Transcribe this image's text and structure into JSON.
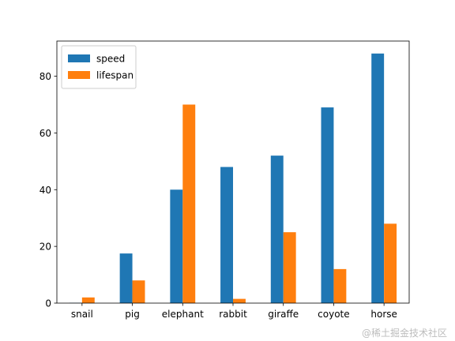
{
  "chart_data": {
    "type": "bar",
    "title": "",
    "xlabel": "",
    "ylabel": "",
    "categories": [
      "snail",
      "pig",
      "elephant",
      "rabbit",
      "giraffe",
      "coyote",
      "horse"
    ],
    "series": [
      {
        "name": "speed",
        "color": "#1f77b4",
        "values": [
          0.1,
          17.5,
          40,
          48,
          52,
          69,
          88
        ]
      },
      {
        "name": "lifespan",
        "color": "#ff7f0e",
        "values": [
          2,
          8,
          70,
          1.5,
          25,
          12,
          28
        ]
      }
    ],
    "ylim": [
      0,
      92.4
    ],
    "yticks": [
      0,
      20,
      40,
      60,
      80
    ],
    "grid": false,
    "legend_position": "top-left"
  },
  "watermark": "@稀土掘金技术社区"
}
